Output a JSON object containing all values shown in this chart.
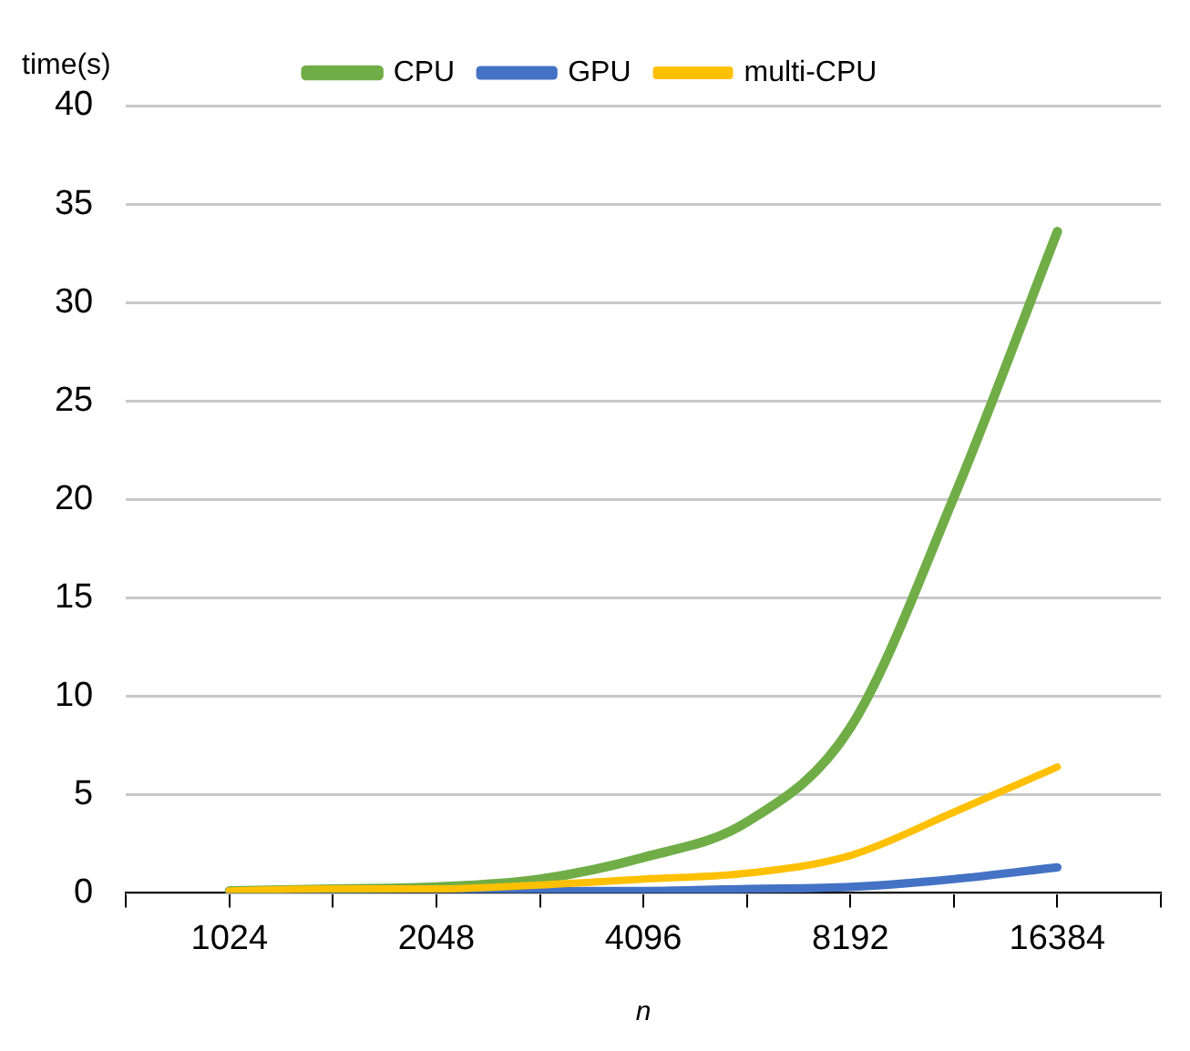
{
  "chart_data": {
    "type": "line",
    "xlabel": "n",
    "ylabel": "time(s)",
    "categories": [
      null,
      "1024",
      null,
      "2048",
      null,
      "4096",
      null,
      "8192",
      null,
      "16384",
      null
    ],
    "series": [
      {
        "name": "CPU",
        "color": "#70ad47",
        "values": [
          null,
          0.1,
          0.2,
          0.3,
          0.7,
          1.8,
          3.6,
          8.4,
          20.1,
          33.6,
          null
        ]
      },
      {
        "name": "GPU",
        "color": "#4472c4",
        "values": [
          null,
          0,
          0,
          0,
          0.1,
          0.1,
          0.2,
          0.3,
          0.7,
          1.3,
          null
        ]
      },
      {
        "name": "multi-CPU",
        "color": "#ffc000",
        "values": [
          null,
          0.1,
          0.2,
          0.2,
          0.4,
          0.7,
          1.0,
          1.9,
          4.1,
          6.4,
          null
        ]
      }
    ],
    "ylim": [
      0,
      40
    ],
    "yticks": [
      0,
      5,
      10,
      15,
      20,
      25,
      30,
      35,
      40
    ],
    "grid": "y",
    "legend": "top",
    "marker": "none",
    "line_style": "solid"
  }
}
